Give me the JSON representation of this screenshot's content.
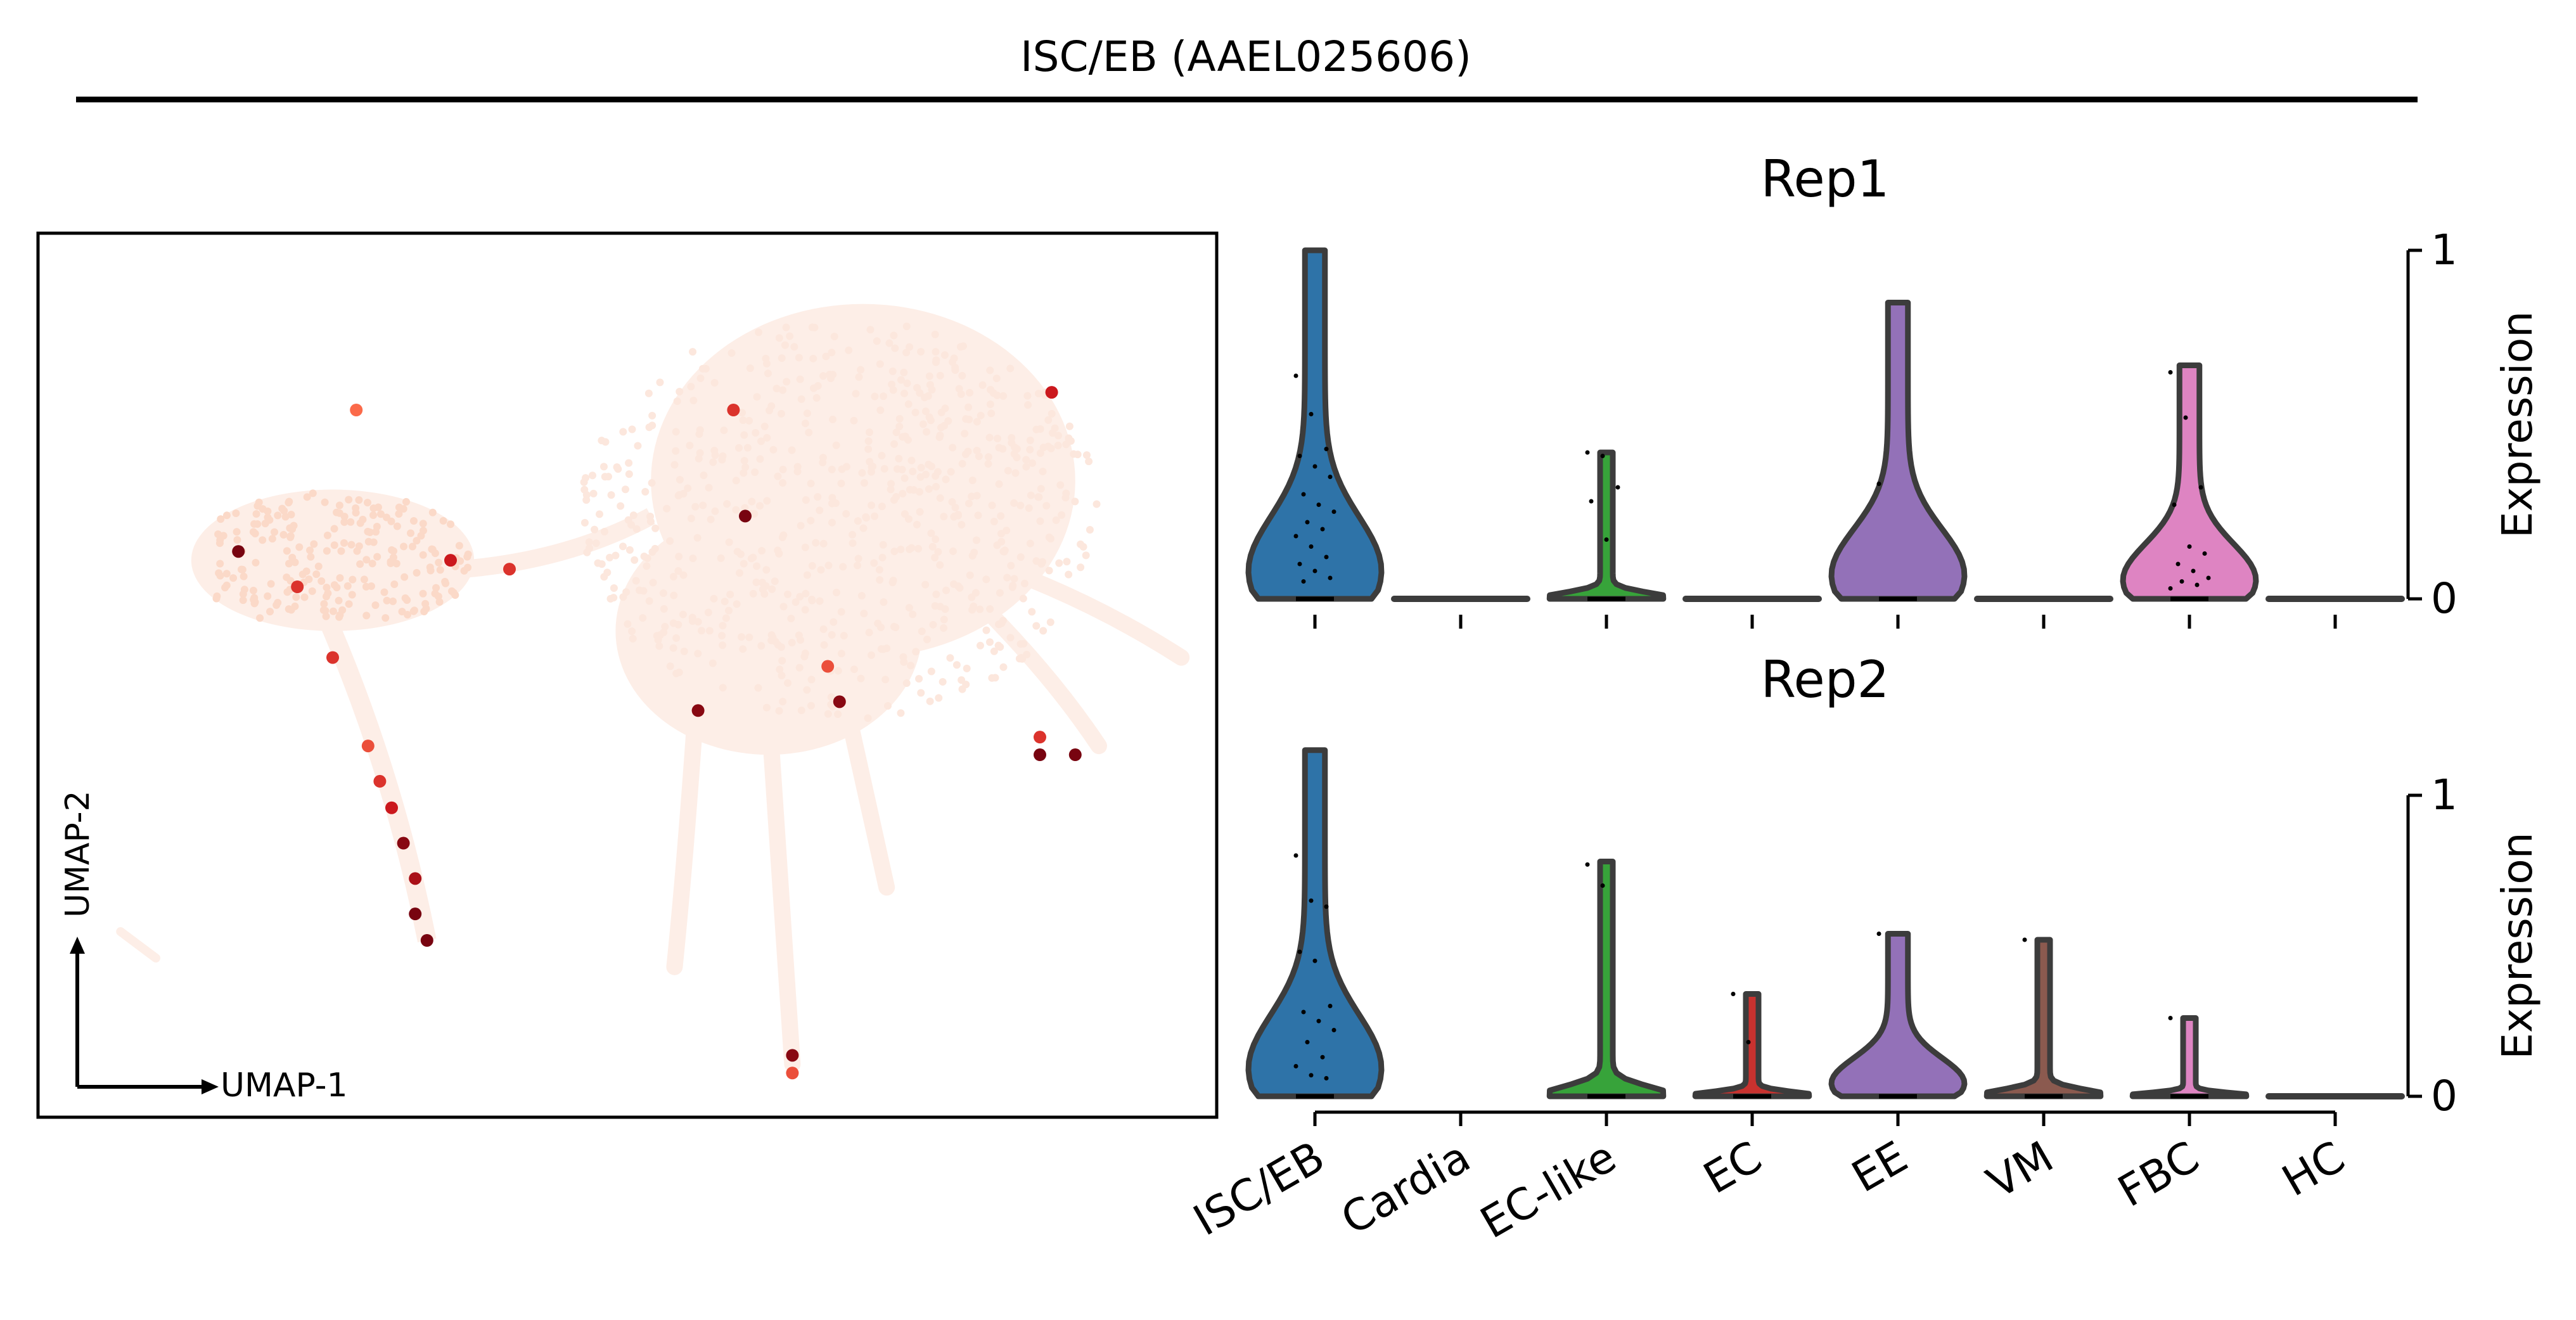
{
  "figure": {
    "title": "ISC/EB (AAEL025606)"
  },
  "chart_data": [
    {
      "type": "scatter",
      "subtype": "umap-embedding",
      "xlabel": "UMAP-1",
      "ylabel": "UMAP-2",
      "colormap": "Reds",
      "highlighted_points": [
        {
          "x": 0.27,
          "y": 0.8,
          "value": 0.4
        },
        {
          "x": 0.17,
          "y": 0.64,
          "value": 0.95
        },
        {
          "x": 0.35,
          "y": 0.63,
          "value": 0.7
        },
        {
          "x": 0.59,
          "y": 0.8,
          "value": 0.6
        },
        {
          "x": 0.6,
          "y": 0.68,
          "value": 0.95
        },
        {
          "x": 0.86,
          "y": 0.82,
          "value": 0.7
        },
        {
          "x": 0.4,
          "y": 0.62,
          "value": 0.6
        },
        {
          "x": 0.56,
          "y": 0.46,
          "value": 0.9
        },
        {
          "x": 0.68,
          "y": 0.47,
          "value": 0.9
        },
        {
          "x": 0.67,
          "y": 0.51,
          "value": 0.5
        },
        {
          "x": 0.85,
          "y": 0.43,
          "value": 0.6
        },
        {
          "x": 0.85,
          "y": 0.41,
          "value": 0.95
        },
        {
          "x": 0.88,
          "y": 0.41,
          "value": 0.95
        },
        {
          "x": 0.64,
          "y": 0.07,
          "value": 0.9
        },
        {
          "x": 0.64,
          "y": 0.05,
          "value": 0.5
        },
        {
          "x": 0.22,
          "y": 0.6,
          "value": 0.6
        },
        {
          "x": 0.25,
          "y": 0.52,
          "value": 0.6
        },
        {
          "x": 0.28,
          "y": 0.42,
          "value": 0.5
        },
        {
          "x": 0.29,
          "y": 0.38,
          "value": 0.6
        },
        {
          "x": 0.3,
          "y": 0.35,
          "value": 0.7
        },
        {
          "x": 0.31,
          "y": 0.31,
          "value": 0.9
        },
        {
          "x": 0.32,
          "y": 0.27,
          "value": 0.8
        },
        {
          "x": 0.32,
          "y": 0.23,
          "value": 0.95
        },
        {
          "x": 0.33,
          "y": 0.2,
          "value": 0.95
        }
      ]
    },
    {
      "type": "violin",
      "title": "Rep1",
      "ylabel": "Expression",
      "ylim": [
        0,
        1
      ],
      "yticks": [
        0,
        1
      ],
      "categories": [
        "ISC/EB",
        "Cardia",
        "EC-like",
        "EC",
        "EE",
        "VM",
        "FBC",
        "HC"
      ],
      "colors": [
        "#2e73a8",
        "#d2702a",
        "#37a33a",
        "#c8322f",
        "#9371b8",
        "#8b5a4f",
        "#de84c2",
        "#7f7f7f"
      ],
      "max_values": [
        1.0,
        0.0,
        0.42,
        0.0,
        0.85,
        0.0,
        0.67,
        0.0
      ],
      "points": [
        [
          0.64,
          0.53,
          0.43,
          0.41,
          0.38,
          0.35,
          0.3,
          0.27,
          0.25,
          0.22,
          0.2,
          0.18,
          0.15,
          0.12,
          0.1,
          0.08,
          0.06,
          0.05
        ],
        [],
        [
          0.42,
          0.41,
          0.32,
          0.28,
          0.17
        ],
        [],
        [
          0.33
        ],
        [],
        [
          0.65,
          0.52,
          0.32,
          0.27,
          0.15,
          0.13,
          0.1,
          0.08,
          0.06,
          0.05,
          0.04,
          0.03
        ],
        []
      ]
    },
    {
      "type": "violin",
      "title": "Rep2",
      "ylabel": "Expression",
      "ylim": [
        0,
        1
      ],
      "yticks": [
        0,
        1
      ],
      "categories": [
        "ISC/EB",
        "Cardia",
        "EC-like",
        "EC",
        "EE",
        "VM",
        "FBC",
        "HC"
      ],
      "colors": [
        "#2e73a8",
        "#d2702a",
        "#37a33a",
        "#c8322f",
        "#9371b8",
        "#8b5a4f",
        "#de84c2",
        "#7f7f7f"
      ],
      "max_values": [
        1.15,
        null,
        0.78,
        0.34,
        0.54,
        0.52,
        0.26,
        0.0
      ],
      "points": [
        [
          0.8,
          0.65,
          0.63,
          0.48,
          0.45,
          0.3,
          0.28,
          0.25,
          0.22,
          0.18,
          0.13,
          0.1,
          0.07,
          0.06
        ],
        [],
        [
          0.77,
          0.7
        ],
        [
          0.34,
          0.18
        ],
        [
          0.54
        ],
        [
          0.52
        ],
        [
          0.26
        ],
        []
      ]
    }
  ]
}
